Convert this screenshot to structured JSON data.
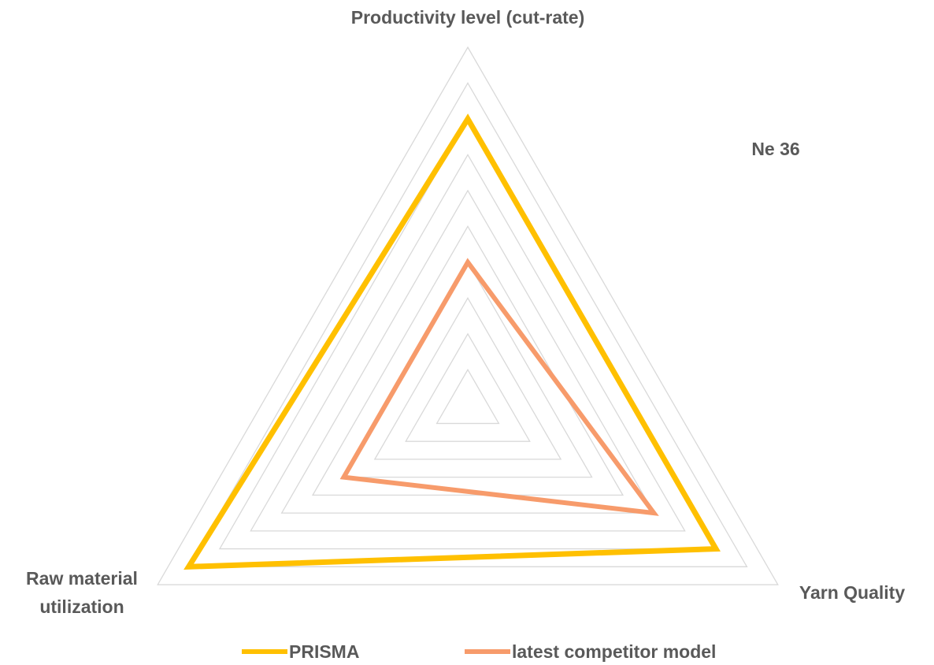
{
  "chart_data": {
    "type": "radar",
    "annotation": "Ne 36",
    "categories": [
      "Productivity level (cut-rate)",
      "Yarn Quality",
      "Raw material utilization"
    ],
    "series": [
      {
        "name": "PRISMA",
        "color": "#ffc000",
        "values": [
          8,
          8,
          9
        ]
      },
      {
        "name": "latest competitor model",
        "color": "#f79b6b",
        "values": [
          4,
          6,
          4
        ]
      }
    ],
    "ylim": [
      0,
      10
    ],
    "yticks": [
      1,
      2,
      3,
      4,
      5,
      6,
      7,
      8,
      9,
      10
    ],
    "grid": true,
    "legend": "bottom"
  }
}
